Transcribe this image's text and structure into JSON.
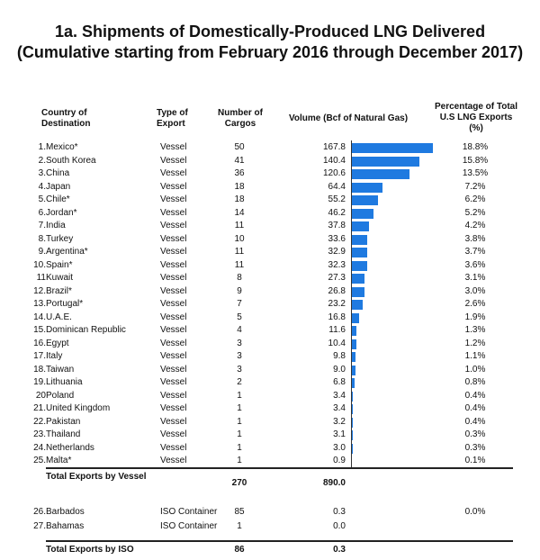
{
  "title_line1": "1a.  Shipments of Domestically-Produced LNG Delivered",
  "title_line2": "(Cumulative starting from February 2016 through December 2017)",
  "headers": {
    "country": "Country of Destination",
    "type": "Type of Export",
    "cargos": "Number of Cargos",
    "volume": "Volume (Bcf of Natural Gas)",
    "percent": "Percentage of Total U.S LNG Exports (%)"
  },
  "bar_color": "#1f7ae0",
  "chart_data": {
    "type": "bar",
    "orientation": "horizontal",
    "title": "1a.  Shipments of Domestically-Produced LNG Delivered",
    "subtitle": "(Cumulative starting from February 2016 through December 2017)",
    "xlabel": "Volume (Bcf of Natural Gas)",
    "xlim": [
      0,
      167.8
    ],
    "grid": false,
    "rows": [
      {
        "num": "1.",
        "country": "Mexico*",
        "type": "Vessel",
        "cargos": "50",
        "volume": 167.8,
        "volume_label": "167.8",
        "percent": "18.8%"
      },
      {
        "num": "2.",
        "country": "South Korea",
        "type": "Vessel",
        "cargos": "41",
        "volume": 140.4,
        "volume_label": "140.4",
        "percent": "15.8%"
      },
      {
        "num": "3.",
        "country": "China",
        "type": "Vessel",
        "cargos": "36",
        "volume": 120.6,
        "volume_label": "120.6",
        "percent": "13.5%"
      },
      {
        "num": "4.",
        "country": "Japan",
        "type": "Vessel",
        "cargos": "18",
        "volume": 64.4,
        "volume_label": "64.4",
        "percent": "7.2%"
      },
      {
        "num": "5.",
        "country": "Chile*",
        "type": "Vessel",
        "cargos": "18",
        "volume": 55.2,
        "volume_label": "55.2",
        "percent": "6.2%"
      },
      {
        "num": "6.",
        "country": "Jordan*",
        "type": "Vessel",
        "cargos": "14",
        "volume": 46.2,
        "volume_label": "46.2",
        "percent": "5.2%"
      },
      {
        "num": "7.",
        "country": "India",
        "type": "Vessel",
        "cargos": "11",
        "volume": 37.8,
        "volume_label": "37.8",
        "percent": "4.2%"
      },
      {
        "num": "8.",
        "country": "Turkey",
        "type": "Vessel",
        "cargos": "10",
        "volume": 33.6,
        "volume_label": "33.6",
        "percent": "3.8%"
      },
      {
        "num": "9.",
        "country": "Argentina*",
        "type": "Vessel",
        "cargos": "11",
        "volume": 32.9,
        "volume_label": "32.9",
        "percent": "3.7%"
      },
      {
        "num": "10.",
        "country": "Spain*",
        "type": "Vessel",
        "cargos": "11",
        "volume": 32.3,
        "volume_label": "32.3",
        "percent": "3.6%"
      },
      {
        "num": "11",
        "country": "Kuwait",
        "type": "Vessel",
        "cargos": "8",
        "volume": 27.3,
        "volume_label": "27.3",
        "percent": "3.1%"
      },
      {
        "num": "12.",
        "country": "Brazil*",
        "type": "Vessel",
        "cargos": "9",
        "volume": 26.8,
        "volume_label": "26.8",
        "percent": "3.0%"
      },
      {
        "num": "13.",
        "country": "Portugal*",
        "type": "Vessel",
        "cargos": "7",
        "volume": 23.2,
        "volume_label": "23.2",
        "percent": "2.6%"
      },
      {
        "num": "14.",
        "country": "U.A.E.",
        "type": "Vessel",
        "cargos": "5",
        "volume": 16.8,
        "volume_label": "16.8",
        "percent": "1.9%"
      },
      {
        "num": "15.",
        "country": "Dominican Republic",
        "type": "Vessel",
        "cargos": "4",
        "volume": 11.6,
        "volume_label": "11.6",
        "percent": "1.3%"
      },
      {
        "num": "16.",
        "country": "Egypt",
        "type": "Vessel",
        "cargos": "3",
        "volume": 10.4,
        "volume_label": "10.4",
        "percent": "1.2%"
      },
      {
        "num": "17.",
        "country": "Italy",
        "type": "Vessel",
        "cargos": "3",
        "volume": 9.8,
        "volume_label": "9.8",
        "percent": "1.1%"
      },
      {
        "num": "18.",
        "country": "Taiwan",
        "type": "Vessel",
        "cargos": "3",
        "volume": 9.0,
        "volume_label": "9.0",
        "percent": "1.0%"
      },
      {
        "num": "19.",
        "country": "Lithuania",
        "type": "Vessel",
        "cargos": "2",
        "volume": 6.8,
        "volume_label": "6.8",
        "percent": "0.8%"
      },
      {
        "num": "20",
        "country": "Poland",
        "type": "Vessel",
        "cargos": "1",
        "volume": 3.4,
        "volume_label": "3.4",
        "percent": "0.4%"
      },
      {
        "num": "21.",
        "country": "United Kingdom",
        "type": "Vessel",
        "cargos": "1",
        "volume": 3.4,
        "volume_label": "3.4",
        "percent": "0.4%"
      },
      {
        "num": "22.",
        "country": "Pakistan",
        "type": "Vessel",
        "cargos": "1",
        "volume": 3.2,
        "volume_label": "3.2",
        "percent": "0.4%"
      },
      {
        "num": "23.",
        "country": "Thailand",
        "type": "Vessel",
        "cargos": "1",
        "volume": 3.1,
        "volume_label": "3.1",
        "percent": "0.3%"
      },
      {
        "num": "24.",
        "country": "Netherlands",
        "type": "Vessel",
        "cargos": "1",
        "volume": 3.0,
        "volume_label": "3.0",
        "percent": "0.3%"
      },
      {
        "num": "25.",
        "country": "Malta*",
        "type": "Vessel",
        "cargos": "1",
        "volume": 0.9,
        "volume_label": "0.9",
        "percent": "0.1%"
      }
    ],
    "iso_rows": [
      {
        "num": "26.",
        "country": "Barbados",
        "type": "ISO Container",
        "cargos": "85",
        "volume": 0.3,
        "volume_label": "0.3",
        "percent": "0.0%"
      },
      {
        "num": "27.",
        "country": "Bahamas",
        "type": "ISO Container",
        "cargos": "1",
        "volume": 0.0,
        "volume_label": "0.0",
        "percent": ""
      }
    ]
  },
  "totals": {
    "vessel": {
      "label": "Total Exports by Vessel",
      "cargos": "270",
      "volume": "890.0"
    },
    "iso": {
      "label": "Total Exports by ISO",
      "cargos": "86",
      "volume": "0.3"
    }
  }
}
